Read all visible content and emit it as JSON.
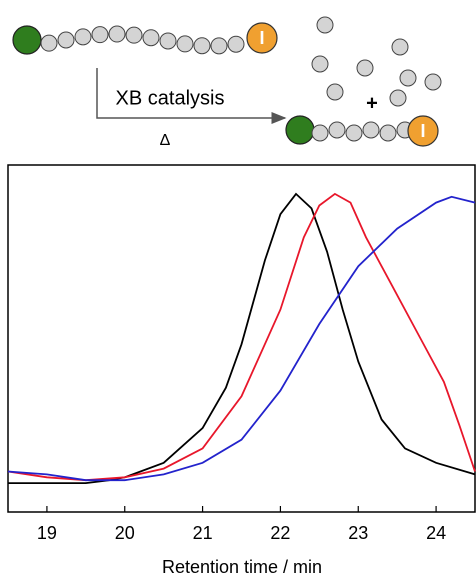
{
  "scheme": {
    "label": "XB catalysis",
    "condition": "Δ",
    "plus": "+",
    "end_group": "I"
  },
  "chart_data": {
    "type": "line",
    "xlabel": "Retention time / min",
    "xlim": [
      18.5,
      24.5
    ],
    "xticks": [
      19,
      20,
      21,
      22,
      23,
      24
    ],
    "ylim": [
      -0.1,
      1.1
    ],
    "series": [
      {
        "color": "#000000",
        "x": [
          18.5,
          19.0,
          19.5,
          19.8,
          20.0,
          20.5,
          21.0,
          21.3,
          21.5,
          21.8,
          22.0,
          22.2,
          22.4,
          22.6,
          22.8,
          23.0,
          23.3,
          23.6,
          24.0,
          24.5
        ],
        "values": [
          0.0,
          0.0,
          0.0,
          0.01,
          0.02,
          0.07,
          0.19,
          0.33,
          0.48,
          0.77,
          0.93,
          1.0,
          0.95,
          0.8,
          0.6,
          0.42,
          0.22,
          0.12,
          0.07,
          0.03
        ]
      },
      {
        "color": "#e8172b",
        "x": [
          18.5,
          19.0,
          19.5,
          20.0,
          20.5,
          21.0,
          21.5,
          22.0,
          22.3,
          22.5,
          22.7,
          22.9,
          23.1,
          23.4,
          23.8,
          24.1,
          24.3,
          24.5
        ],
        "values": [
          0.04,
          0.02,
          0.01,
          0.02,
          0.05,
          0.12,
          0.3,
          0.6,
          0.85,
          0.96,
          1.0,
          0.97,
          0.85,
          0.7,
          0.5,
          0.35,
          0.2,
          0.04
        ]
      },
      {
        "color": "#2323cc",
        "x": [
          18.5,
          19.0,
          19.5,
          20.0,
          20.5,
          21.0,
          21.5,
          22.0,
          22.5,
          23.0,
          23.5,
          24.0,
          24.2,
          24.5
        ],
        "values": [
          0.04,
          0.03,
          0.01,
          0.01,
          0.03,
          0.07,
          0.15,
          0.32,
          0.55,
          0.75,
          0.88,
          0.97,
          0.99,
          0.97
        ]
      }
    ]
  }
}
